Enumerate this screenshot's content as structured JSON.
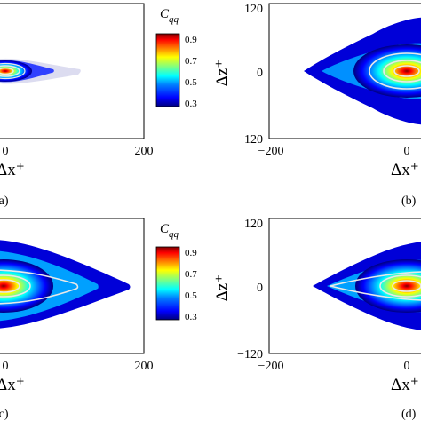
{
  "figure": {
    "colormap": [
      "#00007f",
      "#0000ff",
      "#0080ff",
      "#00ffff",
      "#80ff80",
      "#ffff00",
      "#ff8000",
      "#ff0000",
      "#7f0000"
    ],
    "contour_line_color": "#e8e8e8"
  },
  "chart_data": [
    {
      "panel": "a",
      "panel_label": "(a)",
      "type": "heatmap",
      "xlabel": "Δx⁺",
      "ylabel": "",
      "x_ticks": [
        "0",
        "200"
      ],
      "y_ticks": [],
      "xlim": [
        -60,
        200
      ],
      "ylim": [
        -120,
        120
      ],
      "field": {
        "center": [
          0,
          0
        ],
        "x_extent_pos": 100,
        "x_extent_neg": 60,
        "z_extent": 18
      },
      "colorbar": {
        "label": "C",
        "subscript": "qq",
        "ticks": [
          "0.9",
          "0.7",
          "0.5",
          "0.3"
        ],
        "range": [
          0.3,
          0.9
        ]
      }
    },
    {
      "panel": "b",
      "panel_label": "(b)",
      "type": "heatmap",
      "xlabel": "Δx⁺",
      "ylabel": "Δz⁺",
      "x_ticks": [
        "−200",
        "0"
      ],
      "y_ticks": [
        "120",
        "0",
        "−120"
      ],
      "xlim": [
        -200,
        40
      ],
      "ylim": [
        -120,
        120
      ],
      "field": {
        "center": [
          0,
          0
        ],
        "x_extent_neg": 150,
        "x_extent_pos": 40,
        "z_extent": 100
      }
    },
    {
      "panel": "c",
      "panel_label": "(c)",
      "type": "heatmap",
      "xlabel": "Δx⁺",
      "ylabel": "",
      "x_ticks": [
        "0",
        "200"
      ],
      "y_ticks": [],
      "xlim": [
        -60,
        200
      ],
      "ylim": [
        -120,
        120
      ],
      "field": {
        "center": [
          0,
          0
        ],
        "x_extent_pos": 180,
        "x_extent_neg": 60,
        "z_extent": 60
      },
      "colorbar": {
        "label": "C",
        "subscript": "qq",
        "ticks": [
          "0.9",
          "0.7",
          "0.5",
          "0.3"
        ],
        "range": [
          0.3,
          0.9
        ]
      }
    },
    {
      "panel": "d",
      "panel_label": "(d)",
      "type": "heatmap",
      "xlabel": "Δx⁺",
      "ylabel": "Δz⁺",
      "x_ticks": [
        "−200",
        "0"
      ],
      "y_ticks": [
        "120",
        "0",
        "−120"
      ],
      "xlim": [
        -200,
        40
      ],
      "ylim": [
        -120,
        120
      ],
      "field": {
        "center": [
          0,
          0
        ],
        "x_extent_neg": 150,
        "x_extent_pos": 40,
        "z_extent": 80
      }
    }
  ]
}
